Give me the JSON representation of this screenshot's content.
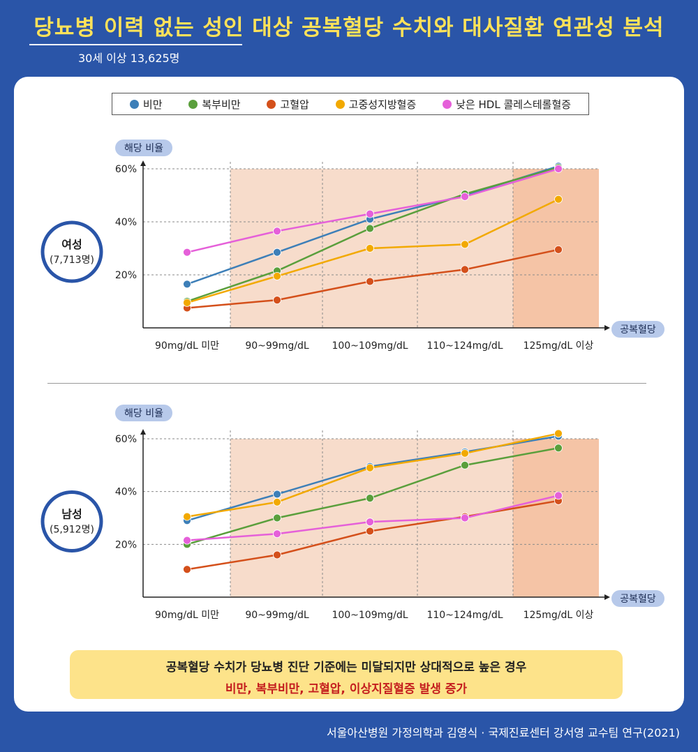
{
  "header": {
    "title": "당뇨병 이력 없는 성인 대상 공복혈당 수치와 대사질환 연관성 분석",
    "subtitle": "30세 이상 13,625명"
  },
  "legend": [
    {
      "label": "비만",
      "color": "#3d7fb8"
    },
    {
      "label": "복부비만",
      "color": "#5a9f3c"
    },
    {
      "label": "고혈압",
      "color": "#d4501b"
    },
    {
      "label": "고중성지방혈증",
      "color": "#f2a900"
    },
    {
      "label": "낮은 HDL 콜레스테롤혈증",
      "color": "#e560d9"
    }
  ],
  "axis": {
    "ylabel": "해당 비율",
    "xlabel": "공복혈당",
    "categories": [
      "90mg/dL 미만",
      "90~99mg/dL",
      "100~109mg/dL",
      "110~124mg/dL",
      "125mg/dL 이상"
    ],
    "yticks": [
      "20%",
      "40%",
      "60%"
    ]
  },
  "chart_data": [
    {
      "type": "line",
      "group_label": "여성",
      "group_count": "(7,713명)",
      "categories": [
        "90mg/dL 미만",
        "90~99mg/dL",
        "100~109mg/dL",
        "110~124mg/dL",
        "125mg/dL 이상"
      ],
      "ylabel": "해당 비율",
      "xlabel": "공복혈당",
      "ylim": [
        0,
        60
      ],
      "series": [
        {
          "name": "비만",
          "values": [
            16.5,
            28.5,
            41,
            50,
            61
          ]
        },
        {
          "name": "복부비만",
          "values": [
            10,
            21.5,
            37.5,
            50.5,
            60.5
          ]
        },
        {
          "name": "고혈압",
          "values": [
            7.5,
            10.5,
            17.5,
            22,
            29.5
          ]
        },
        {
          "name": "고중성지방혈증",
          "values": [
            9.5,
            19.5,
            30,
            31.5,
            48.5
          ]
        },
        {
          "name": "낮은 HDL 콜레스테롤혈증",
          "values": [
            28.5,
            36.5,
            43,
            49.5,
            60
          ]
        }
      ]
    },
    {
      "type": "line",
      "group_label": "남성",
      "group_count": "(5,912명)",
      "categories": [
        "90mg/dL 미만",
        "90~99mg/dL",
        "100~109mg/dL",
        "110~124mg/dL",
        "125mg/dL 이상"
      ],
      "ylabel": "해당 비율",
      "xlabel": "공복혈당",
      "ylim": [
        0,
        60
      ],
      "series": [
        {
          "name": "비만",
          "values": [
            29,
            39,
            49.5,
            55,
            61
          ]
        },
        {
          "name": "복부비만",
          "values": [
            20,
            30,
            37.5,
            50,
            56.5
          ]
        },
        {
          "name": "고혈압",
          "values": [
            10.5,
            16,
            25,
            30.5,
            36.5
          ]
        },
        {
          "name": "고중성지방혈증",
          "values": [
            30.5,
            36,
            49,
            54.5,
            62
          ]
        },
        {
          "name": "낮은 HDL 콜레스테롤혈증",
          "values": [
            21.5,
            24,
            28.5,
            30,
            38.5
          ]
        }
      ]
    }
  ],
  "note": {
    "line1": "공복혈당 수치가 당뇨병 진단 기준에는 미달되지만 상대적으로 높은 경우",
    "line2": "비만, 복부비만, 고혈압, 이상지질혈증 발생 증가"
  },
  "footer": "서울아산병원 가정의학과 김영식 · 국제진료센터 강서영 교수팀 연구(2021)"
}
